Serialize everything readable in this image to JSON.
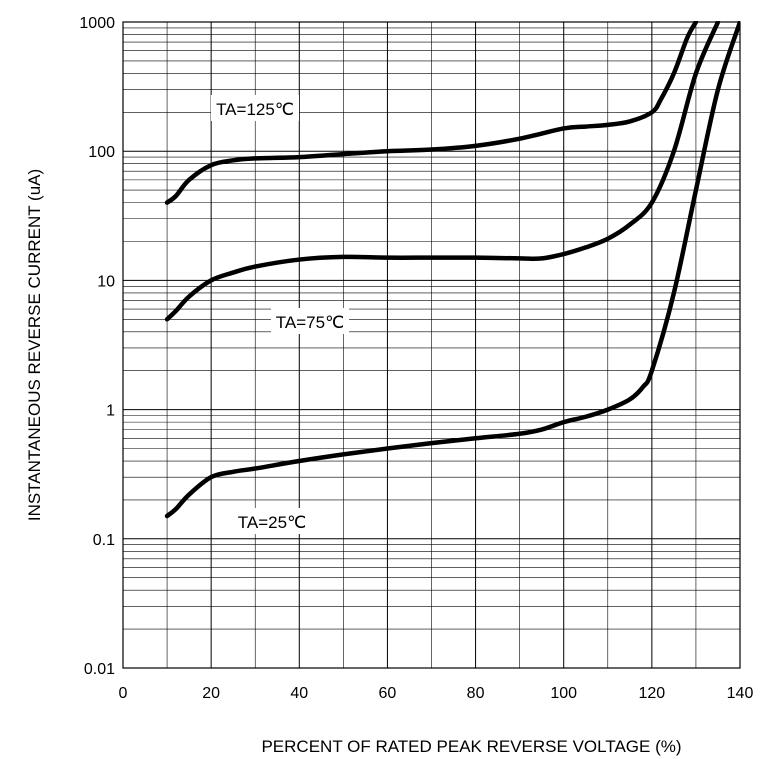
{
  "chart_data": {
    "type": "line",
    "title": "",
    "xlabel": "PERCENT OF RATED PEAK REVERSE VOLTAGE (%)",
    "ylabel": "INSTANTANEOUS REVERSE CURRENT (uA)",
    "xlim": [
      0,
      140
    ],
    "ylim": [
      0.01,
      1000
    ],
    "yscale": "log",
    "grid": true,
    "x_ticks": [
      "0",
      "20",
      "40",
      "60",
      "80",
      "100",
      "120",
      "140"
    ],
    "y_ticks": [
      "0.01",
      "0.1",
      "1",
      "10",
      "100",
      "1000"
    ],
    "series": [
      {
        "name": "TA=125℃",
        "x": [
          10,
          12,
          15,
          20,
          25,
          30,
          40,
          50,
          60,
          70,
          80,
          90,
          100,
          105,
          110,
          115,
          120,
          122,
          125,
          128,
          130
        ],
        "y": [
          40,
          45,
          60,
          78,
          85,
          88,
          90,
          95,
          100,
          103,
          110,
          125,
          150,
          155,
          160,
          170,
          200,
          250,
          400,
          750,
          1000
        ]
      },
      {
        "name": "TA=75℃",
        "x": [
          10,
          12,
          15,
          20,
          25,
          30,
          40,
          50,
          60,
          70,
          80,
          90,
          95,
          100,
          105,
          110,
          115,
          120,
          125,
          130,
          135
        ],
        "y": [
          5,
          5.8,
          7.5,
          10,
          11.5,
          12.8,
          14.5,
          15.2,
          15,
          15,
          15,
          14.8,
          14.8,
          16,
          18,
          21,
          27,
          40,
          100,
          400,
          1000
        ]
      },
      {
        "name": "TA=25℃",
        "x": [
          10,
          12,
          15,
          20,
          25,
          30,
          40,
          50,
          60,
          70,
          80,
          90,
          95,
          100,
          105,
          110,
          115,
          118,
          120,
          125,
          130,
          135,
          140
        ],
        "y": [
          0.15,
          0.17,
          0.22,
          0.3,
          0.33,
          0.35,
          0.4,
          0.45,
          0.5,
          0.55,
          0.6,
          0.65,
          0.7,
          0.8,
          0.88,
          1.0,
          1.2,
          1.5,
          2,
          8,
          50,
          300,
          1000
        ]
      }
    ],
    "annotations": [
      {
        "text": "TA=125℃",
        "series": 0
      },
      {
        "text": "TA=75℃",
        "series": 1
      },
      {
        "text": "TA=25℃",
        "series": 2
      }
    ]
  }
}
